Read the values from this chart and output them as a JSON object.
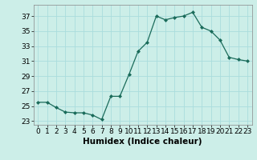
{
  "x": [
    0,
    1,
    2,
    3,
    4,
    5,
    6,
    7,
    8,
    9,
    10,
    11,
    12,
    13,
    14,
    15,
    16,
    17,
    18,
    19,
    20,
    21,
    22,
    23
  ],
  "y": [
    25.5,
    25.5,
    24.8,
    24.2,
    24.1,
    24.1,
    23.8,
    23.2,
    26.3,
    26.3,
    29.2,
    32.3,
    33.5,
    37.0,
    36.5,
    36.8,
    37.0,
    37.5,
    35.5,
    35.0,
    33.8,
    31.5,
    31.2,
    31.0
  ],
  "line_color": "#1a6b5a",
  "marker": "D",
  "marker_size": 2.0,
  "bg_color": "#cceee8",
  "grid_color": "#aadddd",
  "xlabel": "Humidex (Indice chaleur)",
  "xlim": [
    -0.5,
    23.5
  ],
  "ylim": [
    22.5,
    38.5
  ],
  "yticks": [
    23,
    25,
    27,
    29,
    31,
    33,
    35,
    37
  ],
  "xticks": [
    0,
    1,
    2,
    3,
    4,
    5,
    6,
    7,
    8,
    9,
    10,
    11,
    12,
    13,
    14,
    15,
    16,
    17,
    18,
    19,
    20,
    21,
    22,
    23
  ],
  "tick_fontsize": 6.5,
  "xlabel_fontsize": 7.5
}
